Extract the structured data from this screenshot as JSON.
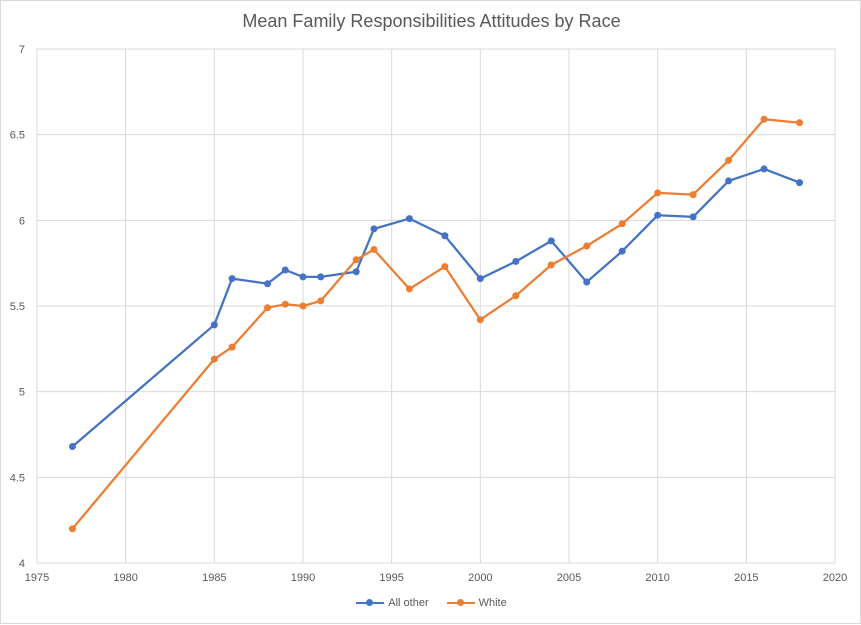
{
  "chart_data": {
    "type": "line",
    "title": "Mean Family Responsibilities Attitudes by Race",
    "xlabel": "",
    "ylabel": "",
    "xlim": [
      1975,
      2020
    ],
    "ylim": [
      4,
      7
    ],
    "x_ticks": [
      1975,
      1980,
      1985,
      1990,
      1995,
      2000,
      2005,
      2010,
      2015,
      2020
    ],
    "y_ticks": [
      4,
      4.5,
      5,
      5.5,
      6,
      6.5,
      7
    ],
    "grid": true,
    "legend_position": "bottom",
    "series": [
      {
        "name": "All other",
        "color": "#4472c4",
        "points": [
          [
            1977,
            4.68
          ],
          [
            1985,
            5.39
          ],
          [
            1986,
            5.66
          ],
          [
            1988,
            5.63
          ],
          [
            1989,
            5.71
          ],
          [
            1990,
            5.67
          ],
          [
            1991,
            5.67
          ],
          [
            1993,
            5.7
          ],
          [
            1994,
            5.95
          ],
          [
            1996,
            6.01
          ],
          [
            1998,
            5.91
          ],
          [
            2000,
            5.66
          ],
          [
            2002,
            5.76
          ],
          [
            2004,
            5.88
          ],
          [
            2006,
            5.64
          ],
          [
            2008,
            5.82
          ],
          [
            2010,
            6.03
          ],
          [
            2012,
            6.02
          ],
          [
            2014,
            6.23
          ],
          [
            2016,
            6.3
          ],
          [
            2018,
            6.22
          ]
        ]
      },
      {
        "name": "White",
        "color": "#ed7d31",
        "points": [
          [
            1977,
            4.2
          ],
          [
            1985,
            5.19
          ],
          [
            1986,
            5.26
          ],
          [
            1988,
            5.49
          ],
          [
            1989,
            5.51
          ],
          [
            1990,
            5.5
          ],
          [
            1991,
            5.53
          ],
          [
            1993,
            5.77
          ],
          [
            1994,
            5.83
          ],
          [
            1996,
            5.6
          ],
          [
            1998,
            5.73
          ],
          [
            2000,
            5.42
          ],
          [
            2002,
            5.56
          ],
          [
            2004,
            5.74
          ],
          [
            2006,
            5.85
          ],
          [
            2008,
            5.98
          ],
          [
            2010,
            6.16
          ],
          [
            2012,
            6.15
          ],
          [
            2014,
            6.35
          ],
          [
            2016,
            6.59
          ],
          [
            2018,
            6.57
          ]
        ]
      }
    ]
  }
}
